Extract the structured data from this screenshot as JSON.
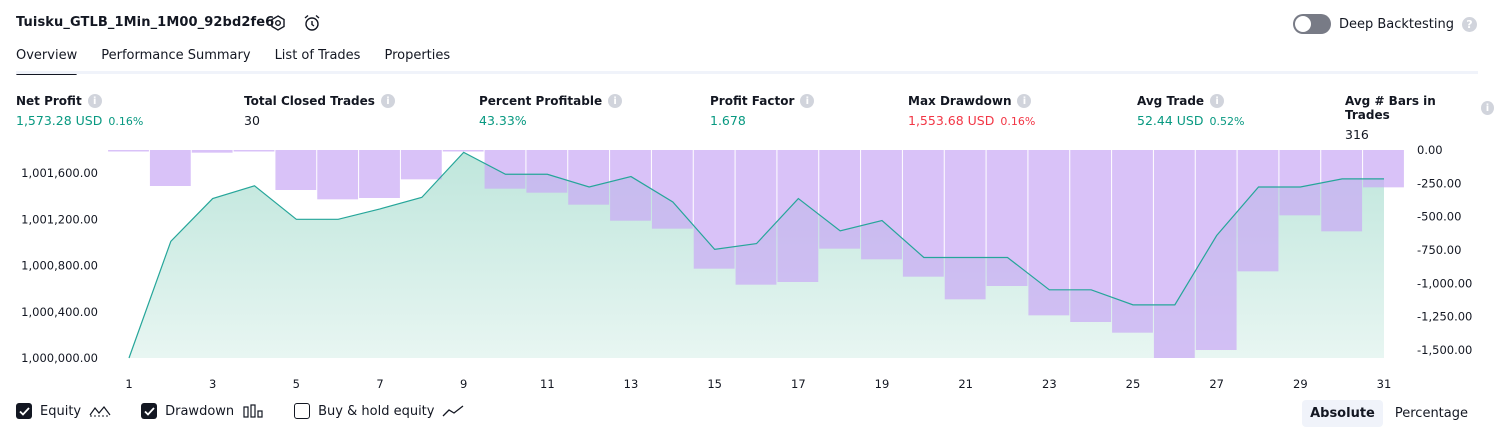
{
  "header": {
    "title": "Tuisku_GTLB_1Min_1M00_92bd2fe6",
    "deep_backtesting_label": "Deep Backtesting"
  },
  "tabs": [
    "Overview",
    "Performance Summary",
    "List of Trades",
    "Properties"
  ],
  "active_tab": 0,
  "metrics": [
    {
      "label": "Net Profit",
      "value": "1,573.28 USD",
      "pct": "0.16%",
      "color": "#089981"
    },
    {
      "label": "Total Closed Trades",
      "value": "30",
      "pct": "",
      "color": "#131722"
    },
    {
      "label": "Percent Profitable",
      "value": "43.33%",
      "pct": "",
      "color": "#089981"
    },
    {
      "label": "Profit Factor",
      "value": "1.678",
      "pct": "",
      "color": "#089981"
    },
    {
      "label": "Max Drawdown",
      "value": "1,553.68 USD",
      "pct": "0.16%",
      "color": "#f23645"
    },
    {
      "label": "Avg Trade",
      "value": "52.44 USD",
      "pct": "0.52%",
      "color": "#089981"
    },
    {
      "label": "Avg # Bars in Trades",
      "value": "316",
      "pct": "",
      "color": "#131722"
    }
  ],
  "chart_data": {
    "type": "area",
    "x_ticks": [
      "1",
      "3",
      "5",
      "7",
      "9",
      "11",
      "13",
      "15",
      "17",
      "19",
      "21",
      "23",
      "25",
      "27",
      "29",
      "31"
    ],
    "y_left_ticks": [
      "1,000,000.00",
      "1,000,400.00",
      "1,000,800.00",
      "1,001,200.00",
      "1,001,600.00"
    ],
    "y_right_ticks": [
      "0.00",
      "-250.00",
      "-500.00",
      "-750.00",
      "-1,000.00",
      "-1,250.00",
      "-1,500.00"
    ],
    "series": [
      {
        "name": "Equity",
        "type": "area",
        "color": "#26a69a",
        "x": [
          1,
          2,
          3,
          4,
          5,
          6,
          7,
          8,
          9,
          10,
          11,
          12,
          13,
          14,
          15,
          16,
          17,
          18,
          19,
          20,
          21,
          22,
          23,
          24,
          25,
          26,
          27,
          28,
          29,
          30,
          31
        ],
        "values": [
          1000000,
          1001010,
          1001380,
          1001490,
          1001200,
          1001200,
          1001290,
          1001390,
          1001780,
          1001590,
          1001590,
          1001480,
          1001570,
          1001350,
          1000940,
          1000990,
          1001380,
          1001100,
          1001190,
          1000870,
          1000870,
          1000870,
          1000590,
          1000590,
          1000460,
          1000460,
          1001060,
          1001480,
          1001480,
          1001550,
          1001550
        ]
      },
      {
        "name": "Drawdown",
        "type": "bar",
        "color": "#b39ddb",
        "x": [
          1,
          2,
          3,
          4,
          5,
          6,
          7,
          8,
          9,
          10,
          11,
          12,
          13,
          14,
          15,
          16,
          17,
          18,
          19,
          20,
          21,
          22,
          23,
          24,
          25,
          26,
          27,
          28,
          29,
          30,
          31
        ],
        "values": [
          0,
          -270,
          -20,
          -10,
          -300,
          -370,
          -360,
          -220,
          0,
          -290,
          -320,
          -410,
          -530,
          -590,
          -890,
          -1010,
          -990,
          -740,
          -820,
          -950,
          -1120,
          -1020,
          -1240,
          -1290,
          -1370,
          -1560,
          -1500,
          -910,
          -490,
          -610,
          -280
        ]
      }
    ],
    "legend_items": [
      {
        "label": "Equity",
        "checked": true
      },
      {
        "label": "Drawdown",
        "checked": true
      },
      {
        "label": "Buy & hold equity",
        "checked": false
      }
    ]
  },
  "view_toggle": {
    "options": [
      "Absolute",
      "Percentage"
    ],
    "selected": 0
  }
}
